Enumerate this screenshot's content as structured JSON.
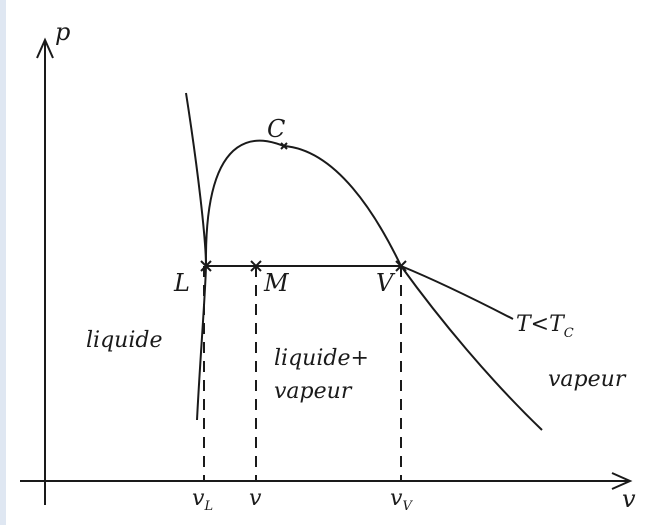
{
  "axes": {
    "y_label": "p",
    "x_label": "v"
  },
  "points": {
    "critical": "C",
    "liquid": "L",
    "mixture": "M",
    "vapour": "V"
  },
  "isotherm_label": {
    "main": "T<T",
    "sub": "C"
  },
  "regions": {
    "liquid": "liquide",
    "mixture_line1": "liquide+",
    "mixture_line2": "vapeur",
    "vapour": "vapeur"
  },
  "x_ticks": {
    "vL_main": "v",
    "vL_sub": "L",
    "v": "v",
    "vV_main": "v",
    "vV_sub": "V"
  },
  "colors": {
    "ink": "#1a1a1a",
    "page_edge": "#dfe7f2"
  }
}
